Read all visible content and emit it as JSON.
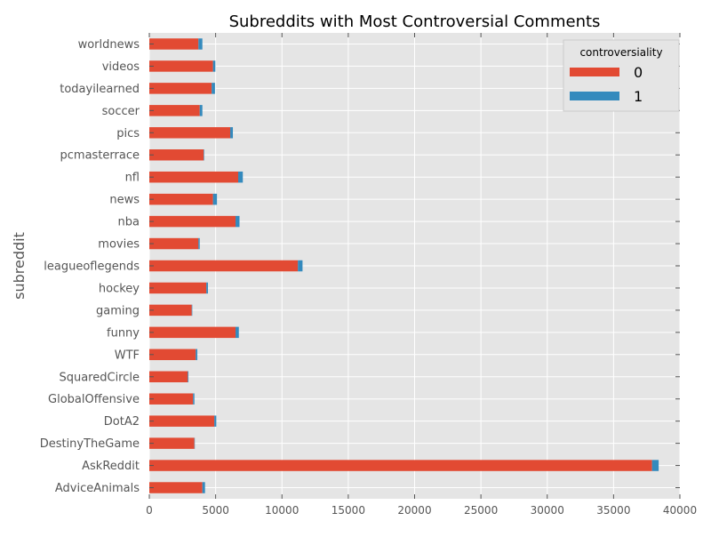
{
  "chart_data": {
    "type": "bar",
    "orientation": "horizontal",
    "stacked": true,
    "title": "Subreddits with Most Controversial Comments",
    "xlabel": "",
    "ylabel": "subreddit",
    "xlim": [
      0,
      40000
    ],
    "xticks": [
      0,
      5000,
      10000,
      15000,
      20000,
      25000,
      30000,
      35000,
      40000
    ],
    "xtick_labels": [
      "0",
      "5000",
      "10000",
      "15000",
      "20000",
      "25000",
      "30000",
      "35000",
      "40000"
    ],
    "grid": true,
    "legend": {
      "title": "controversiality",
      "placement": "top-right"
    },
    "categories": [
      "AdviceAnimals",
      "AskReddit",
      "DestinyTheGame",
      "DotA2",
      "GlobalOffensive",
      "SquaredCircle",
      "WTF",
      "funny",
      "gaming",
      "hockey",
      "leagueoflegends",
      "movies",
      "nba",
      "news",
      "nfl",
      "pcmasterrace",
      "pics",
      "soccer",
      "todayilearned",
      "videos",
      "worldnews"
    ],
    "series": [
      {
        "name": "0",
        "color": "#E24A33",
        "values": [
          4000,
          37900,
          3400,
          4900,
          3300,
          2900,
          3500,
          6500,
          3200,
          4300,
          11200,
          3700,
          6500,
          4800,
          6700,
          4100,
          6100,
          3800,
          4700,
          4800,
          3700
        ]
      },
      {
        "name": "1",
        "color": "#348ABD",
        "values": [
          200,
          500,
          30,
          150,
          100,
          50,
          120,
          250,
          40,
          120,
          350,
          100,
          300,
          300,
          350,
          40,
          200,
          200,
          250,
          180,
          300
        ]
      }
    ]
  }
}
